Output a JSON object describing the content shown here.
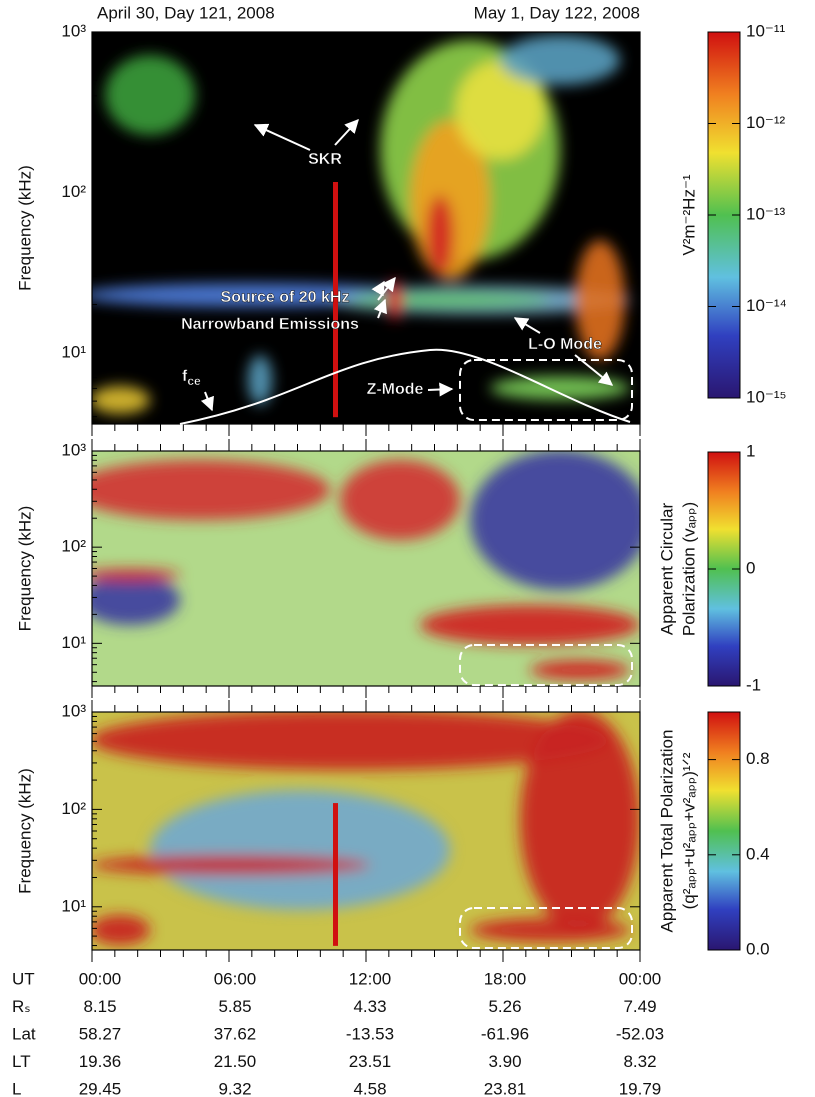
{
  "dates": [
    "April 30, Day 121, 2008",
    "May 1, Day 122, 2008"
  ],
  "time_axis": {
    "xlim": [
      0,
      24
    ],
    "xticks": [
      0,
      1,
      2,
      3,
      4,
      5,
      6,
      7,
      8,
      9,
      10,
      11,
      12,
      13,
      14,
      15,
      16,
      17,
      18,
      19,
      20,
      21,
      22,
      23,
      24
    ]
  },
  "chart_data": [
    {
      "type": "heatmap",
      "ylabel": "Frequency (kHz)",
      "yscale": "log",
      "ylim": [
        3.6,
        1000
      ],
      "yticks": [
        {
          "value": 10,
          "label": "10¹"
        },
        {
          "value": 100,
          "label": "10²"
        },
        {
          "value": 1000,
          "label": "10³"
        }
      ],
      "colorbar": {
        "scale": "log",
        "clim": [
          1e-15,
          1e-11
        ],
        "label": [
          "V²m⁻²Hz⁻¹"
        ],
        "cticks": [
          {
            "value": 1e-11,
            "label": "10⁻¹¹"
          },
          {
            "value": 1e-12,
            "label": "10⁻¹²"
          },
          {
            "value": 1e-13,
            "label": "10⁻¹³"
          },
          {
            "value": 1e-14,
            "label": "10⁻¹⁴"
          },
          {
            "value": 1e-15,
            "label": "10⁻¹⁵"
          }
        ]
      },
      "annotations": [
        "SKR",
        "Source of 20 kHz",
        "Narrowband Emissions",
        "L-O Mode",
        "Z-Mode"
      ],
      "fce_label": {
        "text": "f",
        "subscript": "ce"
      }
    },
    {
      "type": "heatmap",
      "ylabel": "Frequency (kHz)",
      "yscale": "log",
      "ylim": [
        3.6,
        1000
      ],
      "yticks": [
        {
          "value": 10,
          "label": "10¹"
        },
        {
          "value": 100,
          "label": "10²"
        },
        {
          "value": 1000,
          "label": "10³"
        }
      ],
      "colorbar": {
        "scale": "linear",
        "clim": [
          -1,
          1
        ],
        "label": [
          "Apparent Circular",
          "Polarization (vₐₚₚ)"
        ],
        "cticks": [
          1,
          0,
          -1
        ]
      }
    },
    {
      "type": "heatmap",
      "ylabel": "Frequency (kHz)",
      "yscale": "log",
      "ylim": [
        3.6,
        1000
      ],
      "yticks": [
        {
          "value": 10,
          "label": "10¹"
        },
        {
          "value": 100,
          "label": "10²"
        },
        {
          "value": 1000,
          "label": "10³"
        }
      ],
      "colorbar": {
        "scale": "linear",
        "clim": [
          0,
          1
        ],
        "label": [
          "Apparent Total Polarization",
          "(q²ₐₚₚ+u²ₐₚₚ+v²ₐₚₚ)¹ᐟ²"
        ],
        "cticks": [
          0.8,
          0.4,
          {
            "value": 0,
            "label": "0.0"
          }
        ]
      }
    }
  ],
  "ephemeris": {
    "rows": [
      {
        "name": "UT",
        "values": [
          "00:00",
          "06:00",
          "12:00",
          "18:00",
          "00:00"
        ]
      },
      {
        "name": "Rₛ",
        "values": [
          "8.15",
          "5.85",
          "4.33",
          "5.26",
          "7.49"
        ]
      },
      {
        "name": "Lat",
        "values": [
          "58.27",
          "37.62",
          "-13.53",
          "-61.96",
          "-52.03"
        ]
      },
      {
        "name": "LT",
        "values": [
          "19.36",
          "21.50",
          "23.51",
          "3.90",
          "8.32"
        ]
      },
      {
        "name": "L",
        "values": [
          "29.45",
          "9.32",
          "4.58",
          "23.81",
          "19.79"
        ]
      }
    ]
  }
}
